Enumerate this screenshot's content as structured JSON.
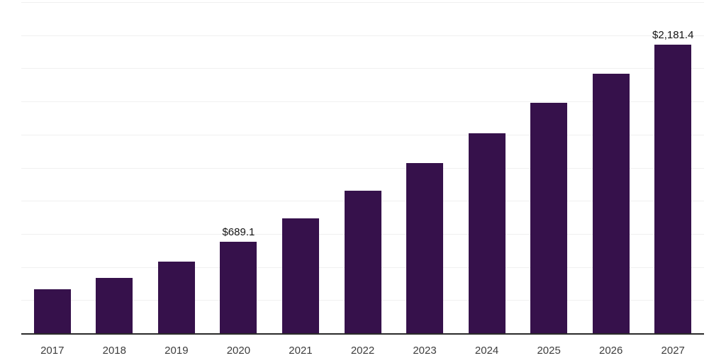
{
  "chart": {
    "colors": {
      "background": "#ffffff",
      "bar": "#36114b",
      "gridline": "#f0f0f0",
      "axis": "#2b2b2b",
      "tick_label": "#3d3d3d",
      "value_label": "#141414"
    }
  },
  "chart_data": {
    "type": "bar",
    "title": "",
    "xlabel": "",
    "ylabel": "",
    "categories": [
      "2017",
      "2018",
      "2019",
      "2020",
      "2021",
      "2022",
      "2023",
      "2024",
      "2025",
      "2026",
      "2027"
    ],
    "values": [
      330,
      415,
      540,
      689.1,
      865,
      1075,
      1285,
      1510,
      1740,
      1960,
      2181.4
    ],
    "data_labels": [
      "",
      "",
      "",
      "$689.1",
      "",
      "",
      "",
      "",
      "",
      "",
      "$2,181.4"
    ],
    "ylim": [
      0,
      2500
    ],
    "gridline_step": 250,
    "y_tick_labels_visible": false,
    "grid": "horizontal",
    "legend_position": "none"
  }
}
